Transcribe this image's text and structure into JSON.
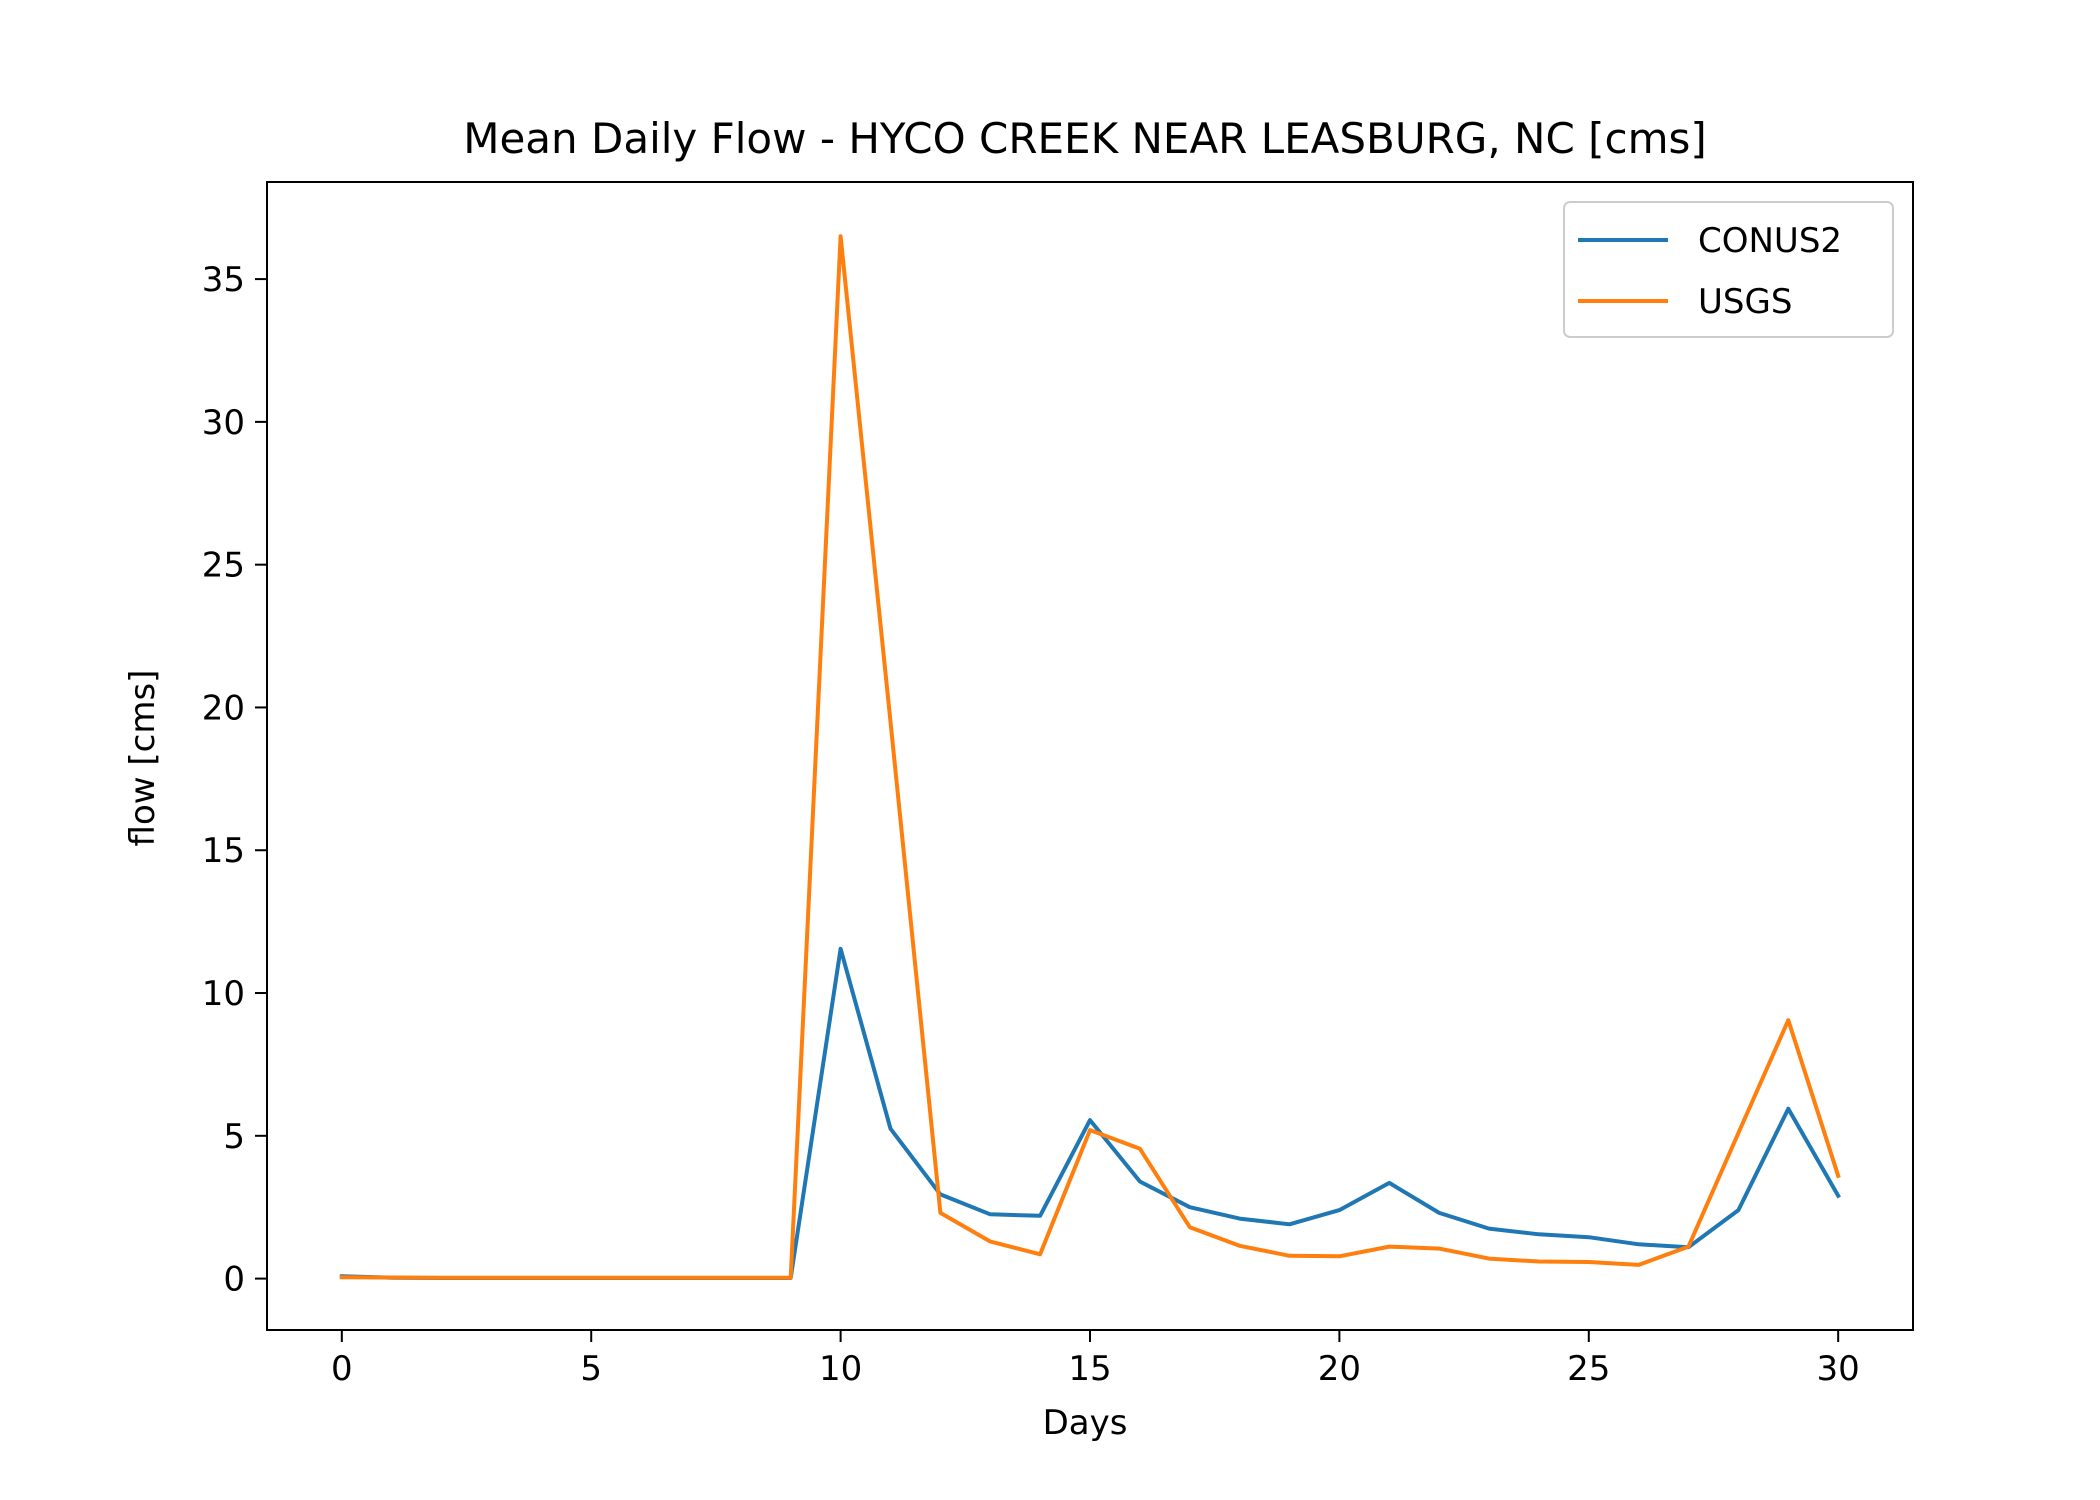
{
  "chart_data": {
    "type": "line",
    "title": "Mean Daily Flow - HYCO CREEK NEAR LEASBURG, NC [cms]",
    "xlabel": "Days",
    "ylabel": "flow [cms]",
    "xlim": [
      -1.5,
      31.5
    ],
    "ylim": [
      -1.8,
      38.4
    ],
    "xticks": [
      0,
      5,
      10,
      15,
      20,
      25,
      30
    ],
    "yticks": [
      0,
      5,
      10,
      15,
      20,
      25,
      30,
      35
    ],
    "grid": false,
    "legend": "top-right",
    "x": [
      0,
      1,
      2,
      3,
      4,
      5,
      6,
      7,
      8,
      9,
      10,
      11,
      12,
      13,
      14,
      15,
      16,
      17,
      18,
      19,
      20,
      21,
      22,
      23,
      24,
      25,
      26,
      27,
      28,
      29,
      30
    ],
    "series": [
      {
        "name": "CONUS2",
        "color": "#1f77b4",
        "values": [
          0.08,
          0.03,
          0.02,
          0.02,
          0.02,
          0.02,
          0.02,
          0.02,
          0.02,
          0.02,
          11.55,
          5.25,
          2.95,
          2.25,
          2.2,
          5.55,
          3.4,
          2.5,
          2.1,
          1.9,
          2.4,
          3.35,
          2.3,
          1.75,
          1.55,
          1.45,
          1.2,
          1.1,
          2.4,
          5.95,
          2.9
        ]
      },
      {
        "name": "USGS",
        "color": "#ff7f0e",
        "values": [
          0.05,
          0.04,
          0.03,
          0.03,
          0.03,
          0.03,
          0.03,
          0.03,
          0.03,
          0.03,
          36.5,
          19.5,
          2.3,
          1.3,
          0.85,
          5.2,
          4.55,
          1.8,
          1.15,
          0.8,
          0.78,
          1.12,
          1.05,
          0.7,
          0.6,
          0.58,
          0.48,
          1.12,
          5.1,
          9.05,
          3.6
        ]
      }
    ]
  }
}
